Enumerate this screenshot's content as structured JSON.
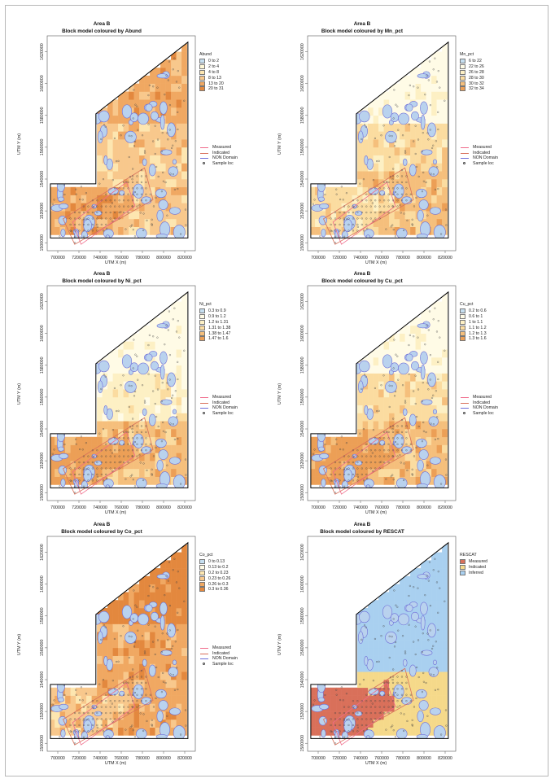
{
  "x_axis_label": "UTM X (m)",
  "y_axis_label": "UTM Y (m)",
  "x_ticks": [
    "700000",
    "720000",
    "740000",
    "760000",
    "780000",
    "800000",
    "820000"
  ],
  "y_ticks": [
    "1500000",
    "1520000",
    "1540000",
    "1560000",
    "1580000",
    "1600000",
    "1620000"
  ],
  "overlay_legend": [
    {
      "label": "Measured",
      "color": "#f06a8a",
      "symbol": "line"
    },
    {
      "label": "Indicated",
      "color": "#d9705a",
      "symbol": "line"
    },
    {
      "label": "NON Domain",
      "color": "#6f6fd8",
      "symbol": "line"
    },
    {
      "label": "Sample loc",
      "color": "#444444",
      "symbol": "circle"
    }
  ],
  "colors": {
    "domain_outline": "#000000",
    "measured": "#f06a8a",
    "indicated": "#d9705a",
    "non_domain": "#6f6fd8",
    "non_domain_fill": "#b9d2ee"
  },
  "chart_data": [
    {
      "type": "heatmap",
      "title": "Area B",
      "subtitle": "Block model coloured by Abund",
      "xlabel": "UTM X (m)",
      "ylabel": "UTM Y (m)",
      "xlim": [
        690000,
        830000
      ],
      "ylim": [
        1495000,
        1630000
      ],
      "legend_title": "Abund",
      "legend_position": "right",
      "classes": [
        {
          "label": "0 to 2",
          "color": "#c6dff0"
        },
        {
          "label": "2 to 4",
          "color": "#fff8d8"
        },
        {
          "label": "4 to 8",
          "color": "#fde6b0"
        },
        {
          "label": "8 to 13",
          "color": "#f8c88c"
        },
        {
          "label": "13 to 20",
          "color": "#f0a862"
        },
        {
          "label": "20 to 31",
          "color": "#e3883e"
        }
      ],
      "dominant_class_by_zone": {
        "north": "13 to 20",
        "central": "8 to 13",
        "southwest": "13 to 20",
        "southeast": "8 to 13"
      }
    },
    {
      "type": "heatmap",
      "title": "Area B",
      "subtitle": "Block model coloured by Mn_pct",
      "xlabel": "UTM X (m)",
      "ylabel": "UTM Y (m)",
      "xlim": [
        690000,
        830000
      ],
      "ylim": [
        1495000,
        1630000
      ],
      "legend_title": "Mn_pct",
      "legend_position": "right",
      "classes": [
        {
          "label": "6 to 22",
          "color": "#c6dff0"
        },
        {
          "label": "22 to 26",
          "color": "#fffbe6"
        },
        {
          "label": "26 to 28",
          "color": "#fdf0c4"
        },
        {
          "label": "28 to 30",
          "color": "#fbdca0"
        },
        {
          "label": "30 to 32",
          "color": "#f5bf7c"
        },
        {
          "label": "32 to 34",
          "color": "#ec9f56"
        }
      ],
      "dominant_class_by_zone": {
        "north": "22 to 26",
        "central": "28 to 30",
        "southwest": "28 to 30",
        "southeast": "30 to 32"
      }
    },
    {
      "type": "heatmap",
      "title": "Area B",
      "subtitle": "Block model coloured by Ni_pct",
      "xlabel": "UTM X (m)",
      "ylabel": "UTM Y (m)",
      "xlim": [
        690000,
        830000
      ],
      "ylim": [
        1495000,
        1630000
      ],
      "legend_title": "Ni_pct",
      "legend_position": "right",
      "classes": [
        {
          "label": "0.3 to 0.9",
          "color": "#c6dff0"
        },
        {
          "label": "0.9 to 1.2",
          "color": "#fffbe6"
        },
        {
          "label": "1.2 to 1.31",
          "color": "#fdf0c4"
        },
        {
          "label": "1.31 to 1.38",
          "color": "#fbdca0"
        },
        {
          "label": "1.38 to 1.47",
          "color": "#f5bf7c"
        },
        {
          "label": "1.47 to 1.6",
          "color": "#ec9f56"
        }
      ],
      "dominant_class_by_zone": {
        "north": "0.9 to 1.2",
        "central": "1.2 to 1.31",
        "southwest": "1.47 to 1.6",
        "southeast": "1.38 to 1.47"
      }
    },
    {
      "type": "heatmap",
      "title": "Area B",
      "subtitle": "Block model coloured by Cu_pct",
      "xlabel": "UTM X (m)",
      "ylabel": "UTM Y (m)",
      "xlim": [
        690000,
        830000
      ],
      "ylim": [
        1495000,
        1630000
      ],
      "legend_title": "Cu_pct",
      "legend_position": "right",
      "classes": [
        {
          "label": "0.2 to 0.6",
          "color": "#c6dff0"
        },
        {
          "label": "0.6 to 1",
          "color": "#fffbe6"
        },
        {
          "label": "1 to 1.1",
          "color": "#fdf0c4"
        },
        {
          "label": "1.1 to 1.2",
          "color": "#fbdca0"
        },
        {
          "label": "1.2 to 1.3",
          "color": "#f5bf7c"
        },
        {
          "label": "1.3 to 1.6",
          "color": "#ec9f56"
        }
      ],
      "dominant_class_by_zone": {
        "north": "0.6 to 1",
        "central": "1.1 to 1.2",
        "southwest": "1.3 to 1.6",
        "southeast": "1.2 to 1.3"
      }
    },
    {
      "type": "heatmap",
      "title": "Area B",
      "subtitle": "Block model coloured by Co_pct",
      "xlabel": "UTM X (m)",
      "ylabel": "UTM Y (m)",
      "xlim": [
        690000,
        830000
      ],
      "ylim": [
        1495000,
        1630000
      ],
      "legend_title": "Co_pct",
      "legend_position": "right",
      "classes": [
        {
          "label": "0 to 0.13",
          "color": "#c6dff0"
        },
        {
          "label": "0.13 to 0.2",
          "color": "#fffbe6"
        },
        {
          "label": "0.2 to 0.23",
          "color": "#fde6b0"
        },
        {
          "label": "0.23 to 0.26",
          "color": "#f8c88c"
        },
        {
          "label": "0.26 to 0.3",
          "color": "#f0a862"
        },
        {
          "label": "0.3 to 0.36",
          "color": "#e3883e"
        }
      ],
      "dominant_class_by_zone": {
        "north": "0.3 to 0.36",
        "central": "0.26 to 0.3",
        "southwest": "0.23 to 0.26",
        "southeast": "0.26 to 0.3"
      }
    },
    {
      "type": "heatmap",
      "title": "Area B",
      "subtitle": "Block model coloured by RESCAT",
      "xlabel": "UTM X (m)",
      "ylabel": "UTM Y (m)",
      "xlim": [
        690000,
        830000
      ],
      "ylim": [
        1495000,
        1630000
      ],
      "legend_title": "RESCAT",
      "legend_position": "right",
      "classes": [
        {
          "label": "Measured",
          "color": "#d9705a"
        },
        {
          "label": "Indicated",
          "color": "#f5d98a"
        },
        {
          "label": "Inferred",
          "color": "#a9d0f0"
        }
      ],
      "dominant_class_by_zone": {
        "north": "Inferred",
        "central": "Inferred",
        "southwest": "Measured",
        "southeast": "Indicated"
      }
    }
  ]
}
